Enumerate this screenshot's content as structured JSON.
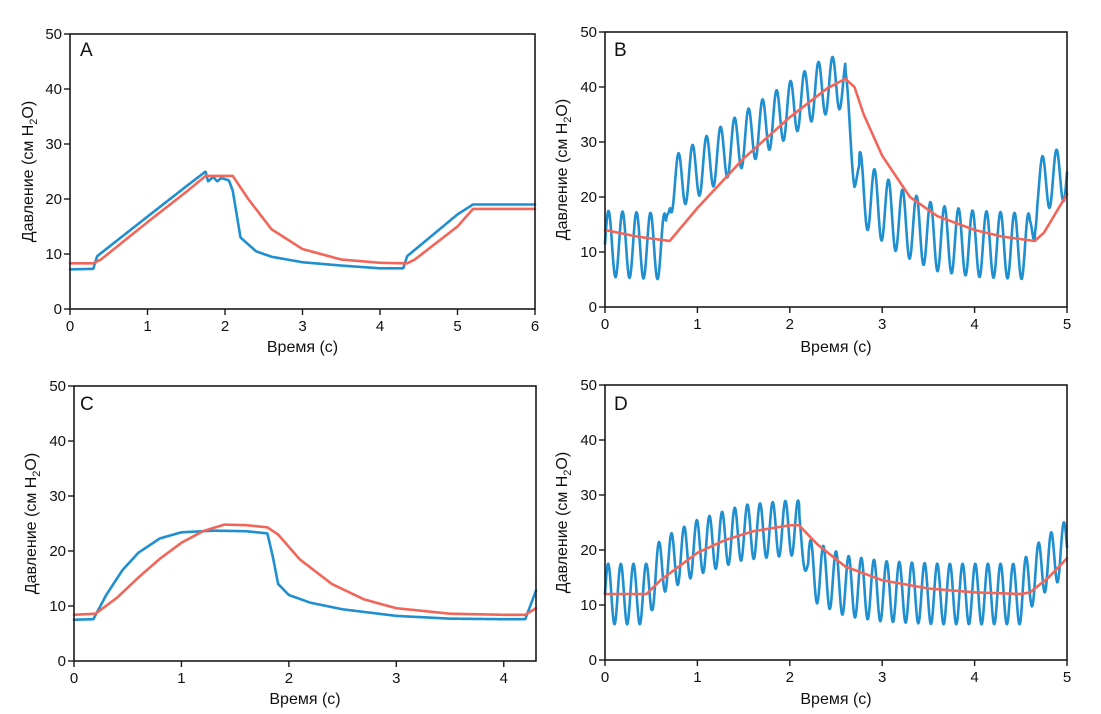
{
  "colors": {
    "series_blue": "#1f8fd0",
    "series_red": "#f2665a",
    "axis": "#1a1a1a"
  },
  "chart_data": [
    {
      "type": "line",
      "panel": "A",
      "xlabel": "Время (с)",
      "ylabel_main": "Давление (см H",
      "ylabel_sub": "2",
      "ylabel_end": "O)",
      "xlim": [
        0,
        6
      ],
      "ylim": [
        0,
        50
      ],
      "xticks": [
        "0",
        "1",
        "2",
        "3",
        "4",
        "5",
        "6"
      ],
      "yticks": [
        "0",
        "10",
        "20",
        "30",
        "40",
        "50"
      ],
      "series": [
        {
          "name": "blue",
          "color": "#1f8fd0",
          "oscillation": null,
          "points": [
            [
              0,
              7.2
            ],
            [
              0.3,
              7.3
            ],
            [
              0.35,
              9.6
            ],
            [
              1.0,
              16.8
            ],
            [
              1.5,
              22.3
            ],
            [
              1.75,
              25.0
            ],
            [
              1.78,
              23.2
            ],
            [
              1.85,
              24.0
            ],
            [
              1.9,
              23.2
            ],
            [
              1.95,
              23.8
            ],
            [
              2.05,
              23.4
            ],
            [
              2.1,
              21.5
            ],
            [
              2.2,
              13.0
            ],
            [
              2.4,
              10.5
            ],
            [
              2.6,
              9.5
            ],
            [
              3.0,
              8.5
            ],
            [
              3.5,
              7.9
            ],
            [
              4.0,
              7.4
            ],
            [
              4.3,
              7.4
            ],
            [
              4.35,
              9.6
            ],
            [
              5.0,
              17.2
            ],
            [
              5.2,
              19.0
            ]
          ]
        },
        {
          "name": "red",
          "color": "#f2665a",
          "oscillation": null,
          "points": [
            [
              0,
              8.3
            ],
            [
              0.3,
              8.3
            ],
            [
              0.4,
              9.0
            ],
            [
              1.0,
              15.8
            ],
            [
              1.5,
              21.3
            ],
            [
              1.75,
              24.2
            ],
            [
              2.1,
              24.2
            ],
            [
              2.3,
              20.0
            ],
            [
              2.6,
              14.5
            ],
            [
              3.0,
              10.9
            ],
            [
              3.5,
              9.0
            ],
            [
              4.0,
              8.4
            ],
            [
              4.35,
              8.3
            ],
            [
              4.45,
              9.0
            ],
            [
              5.0,
              15.0
            ],
            [
              5.2,
              18.2
            ]
          ]
        }
      ]
    },
    {
      "type": "line",
      "panel": "B",
      "xlabel": "Время (с)",
      "ylabel_main": "Давление (см H",
      "ylabel_sub": "2",
      "ylabel_end": "O)",
      "xlim": [
        0,
        5
      ],
      "ylim": [
        0,
        50
      ],
      "xticks": [
        "0",
        "1",
        "2",
        "3",
        "4",
        "5"
      ],
      "yticks": [
        "0",
        "10",
        "20",
        "30",
        "40",
        "50"
      ],
      "series": [
        {
          "name": "blue",
          "color": "#1f8fd0",
          "oscillation": {
            "freq_hz": 6.6,
            "segments": [
              [
                0,
                0.7,
                6.0
              ],
              [
                0.7,
                2.6,
                5.0
              ],
              [
                2.6,
                2.75,
                3.5
              ],
              [
                2.75,
                4.65,
                6.0
              ],
              [
                4.65,
                5.0,
                5.0
              ]
            ]
          },
          "points": [
            [
              0,
              11.5
            ],
            [
              0.66,
              11.0
            ],
            [
              0.7,
              22.0
            ],
            [
              1.0,
              25.0
            ],
            [
              1.5,
              30.5
            ],
            [
              2.0,
              36.0
            ],
            [
              2.3,
              39.5
            ],
            [
              2.55,
              41.0
            ],
            [
              2.6,
              40.0
            ],
            [
              2.7,
              25.0
            ],
            [
              2.8,
              20.5
            ],
            [
              3.2,
              15.5
            ],
            [
              3.6,
              12.5
            ],
            [
              4.0,
              11.5
            ],
            [
              4.6,
              11.0
            ],
            [
              4.68,
              22.0
            ],
            [
              5.0,
              24.5
            ]
          ]
        },
        {
          "name": "red",
          "color": "#f2665a",
          "oscillation": null,
          "points": [
            [
              0,
              14.0
            ],
            [
              0.35,
              12.8
            ],
            [
              0.7,
              12.0
            ],
            [
              1.0,
              18.0
            ],
            [
              1.5,
              27.0
            ],
            [
              2.0,
              34.5
            ],
            [
              2.4,
              39.7
            ],
            [
              2.6,
              41.5
            ],
            [
              2.7,
              40.0
            ],
            [
              2.8,
              35.0
            ],
            [
              3.0,
              27.5
            ],
            [
              3.3,
              20.0
            ],
            [
              3.6,
              16.5
            ],
            [
              4.0,
              14.0
            ],
            [
              4.3,
              12.8
            ],
            [
              4.65,
              12.0
            ],
            [
              4.75,
              13.5
            ],
            [
              5.0,
              20.5
            ]
          ]
        }
      ]
    },
    {
      "type": "line",
      "panel": "C",
      "xlabel": "Время (с)",
      "ylabel_main": "Давление (см H",
      "ylabel_sub": "2",
      "ylabel_end": "O)",
      "xlim": [
        0,
        4.3
      ],
      "ylim": [
        0,
        50
      ],
      "xticks": [
        "0",
        "1",
        "2",
        "3",
        "4"
      ],
      "yticks": [
        "0",
        "10",
        "20",
        "30",
        "40",
        "50"
      ],
      "series": [
        {
          "name": "blue",
          "color": "#1f8fd0",
          "oscillation": null,
          "points": [
            [
              0,
              7.5
            ],
            [
              0.18,
              7.6
            ],
            [
              0.3,
              12.0
            ],
            [
              0.45,
              16.5
            ],
            [
              0.6,
              19.7
            ],
            [
              0.8,
              22.3
            ],
            [
              1.0,
              23.4
            ],
            [
              1.3,
              23.7
            ],
            [
              1.6,
              23.6
            ],
            [
              1.8,
              23.2
            ],
            [
              1.85,
              19.0
            ],
            [
              1.9,
              14.0
            ],
            [
              2.0,
              12.0
            ],
            [
              2.2,
              10.6
            ],
            [
              2.5,
              9.4
            ],
            [
              3.0,
              8.2
            ],
            [
              3.5,
              7.7
            ],
            [
              4.0,
              7.6
            ],
            [
              4.2,
              7.6
            ],
            [
              4.3,
              12.8
            ]
          ]
        },
        {
          "name": "red",
          "color": "#f2665a",
          "oscillation": null,
          "points": [
            [
              0,
              8.4
            ],
            [
              0.2,
              8.6
            ],
            [
              0.4,
              11.5
            ],
            [
              0.6,
              15.2
            ],
            [
              0.8,
              18.6
            ],
            [
              1.0,
              21.5
            ],
            [
              1.2,
              23.6
            ],
            [
              1.4,
              24.8
            ],
            [
              1.6,
              24.7
            ],
            [
              1.8,
              24.3
            ],
            [
              1.9,
              23.0
            ],
            [
              2.1,
              18.5
            ],
            [
              2.4,
              14.0
            ],
            [
              2.7,
              11.2
            ],
            [
              3.0,
              9.6
            ],
            [
              3.5,
              8.6
            ],
            [
              4.0,
              8.4
            ],
            [
              4.2,
              8.4
            ],
            [
              4.3,
              9.6
            ]
          ]
        }
      ]
    },
    {
      "type": "line",
      "panel": "D",
      "xlabel": "Время (с)",
      "ylabel_main": "Давление (см H",
      "ylabel_sub": "2",
      "ylabel_end": "O)",
      "xlim": [
        0,
        5
      ],
      "ylim": [
        0,
        50
      ],
      "xticks": [
        "0",
        "1",
        "2",
        "3",
        "4",
        "5"
      ],
      "yticks": [
        "0",
        "10",
        "20",
        "30",
        "40",
        "50"
      ],
      "series": [
        {
          "name": "blue",
          "color": "#1f8fd0",
          "oscillation": {
            "freq_hz": 7.3,
            "segments": [
              [
                0,
                0.5,
                5.5
              ],
              [
                0.5,
                2.1,
                5.0
              ],
              [
                2.1,
                2.2,
                3.0
              ],
              [
                2.2,
                4.6,
                5.5
              ],
              [
                4.6,
                5.0,
                5.0
              ]
            ]
          },
          "points": [
            [
              0,
              12.0
            ],
            [
              0.45,
              12.0
            ],
            [
              0.6,
              17.0
            ],
            [
              1.0,
              20.5
            ],
            [
              1.5,
              23.2
            ],
            [
              2.0,
              24.0
            ],
            [
              2.1,
              24.0
            ],
            [
              2.2,
              16.5
            ],
            [
              2.6,
              13.5
            ],
            [
              3.0,
              12.5
            ],
            [
              3.6,
              12.0
            ],
            [
              4.5,
              12.0
            ],
            [
              4.7,
              16.5
            ],
            [
              5.0,
              20.5
            ]
          ]
        },
        {
          "name": "red",
          "color": "#f2665a",
          "oscillation": null,
          "points": [
            [
              0,
              12.0
            ],
            [
              0.45,
              12.0
            ],
            [
              0.6,
              14.5
            ],
            [
              0.8,
              17.0
            ],
            [
              1.0,
              19.5
            ],
            [
              1.3,
              21.8
            ],
            [
              1.6,
              23.4
            ],
            [
              2.0,
              24.5
            ],
            [
              2.1,
              24.5
            ],
            [
              2.3,
              21.0
            ],
            [
              2.6,
              17.0
            ],
            [
              3.0,
              14.5
            ],
            [
              3.5,
              13.0
            ],
            [
              4.0,
              12.3
            ],
            [
              4.5,
              12.0
            ],
            [
              4.6,
              12.3
            ],
            [
              4.8,
              15.0
            ],
            [
              5.0,
              18.5
            ]
          ]
        }
      ]
    }
  ]
}
